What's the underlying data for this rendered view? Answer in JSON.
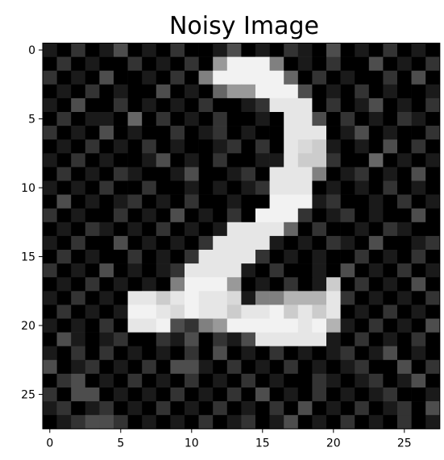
{
  "chart_data": {
    "type": "heatmap",
    "title": "Noisy Image",
    "colormap": "gray",
    "vlim": [
      0,
      1
    ],
    "xlim": [
      -0.5,
      27.5
    ],
    "ylim": [
      27.5,
      -0.5
    ],
    "xticks": [
      0,
      5,
      10,
      15,
      20,
      25
    ],
    "yticks": [
      0,
      5,
      10,
      15,
      20,
      25
    ],
    "values": [
      [
        0.1,
        0,
        0.2,
        0,
        0.1,
        0.3,
        0,
        0.1,
        0,
        0.2,
        0,
        0,
        0.1,
        0.3,
        0,
        0.1,
        0,
        0.2,
        0.1,
        0,
        0.3,
        0,
        0.1,
        0,
        0.2,
        0,
        0.1,
        0
      ],
      [
        0,
        0.2,
        0,
        0.1,
        0,
        0,
        0.2,
        0,
        0.1,
        0,
        0.2,
        0,
        0.6,
        0.95,
        0.95,
        0.95,
        0.5,
        0,
        0.1,
        0,
        0.2,
        0,
        0,
        0.3,
        0,
        0.1,
        0,
        0.2
      ],
      [
        0.2,
        0,
        0.1,
        0,
        0.3,
        0,
        0,
        0.1,
        0,
        0.2,
        0,
        0.5,
        0.95,
        0.95,
        0.95,
        0.95,
        0.95,
        0.4,
        0,
        0.2,
        0,
        0.1,
        0,
        0,
        0.2,
        0,
        0.3,
        0
      ],
      [
        0,
        0.1,
        0,
        0.2,
        0,
        0.1,
        0,
        0,
        0.3,
        0,
        0.1,
        0,
        0.4,
        0.6,
        0.6,
        0.95,
        0.95,
        0.95,
        0.3,
        0,
        0.1,
        0,
        0.2,
        0,
        0.1,
        0,
        0,
        0.1
      ],
      [
        0.1,
        0,
        0.3,
        0,
        0,
        0.2,
        0,
        0.1,
        0,
        0.1,
        0,
        0.2,
        0,
        0,
        0.1,
        0.2,
        0.9,
        0.9,
        0.9,
        0,
        0.2,
        0,
        0.1,
        0.3,
        0,
        0.1,
        0,
        0.2
      ],
      [
        0,
        0.2,
        0,
        0.1,
        0.1,
        0,
        0.4,
        0,
        0.2,
        0,
        0.1,
        0,
        0.2,
        0,
        0,
        0.1,
        0,
        0.9,
        0.9,
        0.3,
        0,
        0.2,
        0,
        0.1,
        0,
        0.2,
        0.1,
        0
      ],
      [
        0.2,
        0,
        0.1,
        0,
        0.3,
        0,
        0.1,
        0,
        0,
        0.2,
        0,
        0.1,
        0.2,
        0,
        0.1,
        0,
        0,
        0.9,
        0.9,
        0.9,
        0,
        0.1,
        0.3,
        0,
        0.1,
        0,
        0,
        0.2
      ],
      [
        0,
        0.1,
        0,
        0.2,
        0,
        0.1,
        0,
        0.2,
        0,
        0.1,
        0,
        0,
        0.1,
        0.2,
        0,
        0.2,
        0,
        0.9,
        0.85,
        0.8,
        0.1,
        0,
        0.1,
        0,
        0.3,
        0,
        0.2,
        0
      ],
      [
        0.1,
        0,
        0.2,
        0,
        0.1,
        0,
        0,
        0.1,
        0.3,
        0,
        0.1,
        0,
        0.2,
        0,
        0,
        0.1,
        0.1,
        0.9,
        0.8,
        0.8,
        0.2,
        0,
        0,
        0.4,
        0,
        0.1,
        0,
        0.1
      ],
      [
        0,
        0.2,
        0,
        0.1,
        0,
        0.2,
        0.1,
        0,
        0,
        0.1,
        0.3,
        0,
        0,
        0.1,
        0.2,
        0,
        0.9,
        0.9,
        0.9,
        0.5,
        0,
        0.1,
        0.2,
        0,
        0.1,
        0,
        0.3,
        0
      ],
      [
        0.1,
        0,
        0.1,
        0,
        0.2,
        0,
        0,
        0.2,
        0,
        0,
        0.1,
        0,
        0.1,
        0,
        0.1,
        0.2,
        0.9,
        0.9,
        0.9,
        0,
        0.1,
        0,
        0.1,
        0,
        0.2,
        0,
        0.1,
        0
      ],
      [
        0,
        0.3,
        0,
        0.1,
        0,
        0.1,
        0.2,
        0,
        0.1,
        0,
        0.2,
        0,
        0,
        0.1,
        0,
        0,
        0.95,
        0.95,
        0.95,
        0.1,
        0.2,
        0,
        0,
        0.1,
        0,
        0.2,
        0,
        0.1
      ],
      [
        0.2,
        0,
        0.1,
        0,
        0,
        0.2,
        0,
        0.1,
        0,
        0.3,
        0,
        0.1,
        0,
        0.2,
        0,
        0.95,
        0.95,
        0.95,
        0.2,
        0,
        0.1,
        0.2,
        0,
        0.1,
        0,
        0,
        0.3,
        0
      ],
      [
        0,
        0.1,
        0,
        0.2,
        0.1,
        0,
        0.1,
        0,
        0.2,
        0,
        0.1,
        0,
        0.1,
        0.9,
        0.9,
        0.9,
        0.9,
        0.4,
        0,
        0.2,
        0,
        0,
        0.1,
        0,
        0.2,
        0.1,
        0,
        0
      ],
      [
        0.1,
        0,
        0.2,
        0,
        0,
        0.3,
        0,
        0.1,
        0,
        0.1,
        0,
        0.2,
        0.9,
        0.9,
        0.9,
        0.9,
        0.1,
        0,
        0.1,
        0,
        0.2,
        0.1,
        0,
        0.3,
        0,
        0,
        0.1,
        0.2
      ],
      [
        0,
        0.2,
        0,
        0.1,
        0,
        0,
        0.2,
        0,
        0.1,
        0,
        0.2,
        0.9,
        0.9,
        0.9,
        0.9,
        0.2,
        0,
        0.1,
        0,
        0.1,
        0,
        0,
        0.2,
        0,
        0.1,
        0,
        0.2,
        0
      ],
      [
        0.2,
        0,
        0.1,
        0,
        0.3,
        0,
        0.1,
        0,
        0.1,
        0.2,
        0.9,
        0.9,
        0.9,
        0.9,
        0.1,
        0,
        0.2,
        0,
        0,
        0.1,
        0,
        0.3,
        0,
        0.1,
        0,
        0.2,
        0,
        0.1
      ],
      [
        0,
        0.1,
        0,
        0.2,
        0,
        0.1,
        0,
        0.1,
        0,
        0.5,
        0.95,
        0.95,
        0.95,
        0.6,
        0,
        0.1,
        0,
        0.2,
        0,
        0.1,
        0.8,
        0,
        0.2,
        0,
        0.1,
        0,
        0.3,
        0
      ],
      [
        0.1,
        0,
        0.2,
        0,
        0.1,
        0,
        0.9,
        0.9,
        0.8,
        0.9,
        0.95,
        0.9,
        0.9,
        0.85,
        0.1,
        0.5,
        0.5,
        0.7,
        0.7,
        0.7,
        0.9,
        0.2,
        0,
        0.1,
        0,
        0.1,
        0,
        0.2
      ],
      [
        0,
        0.2,
        0,
        0.1,
        0,
        0.1,
        0.95,
        0.95,
        0.9,
        0.85,
        0.95,
        0.9,
        0.9,
        0.8,
        0.9,
        0.9,
        0.95,
        0.8,
        0.9,
        0.8,
        0.9,
        0,
        0.1,
        0,
        0.2,
        0,
        0.1,
        0
      ],
      [
        0.1,
        0,
        0.1,
        0,
        0.2,
        0,
        0.9,
        0.9,
        0.95,
        0.3,
        0.2,
        0.5,
        0.6,
        0.95,
        0.95,
        0.95,
        0.95,
        0.95,
        0.9,
        0.95,
        0.7,
        0.1,
        0,
        0.2,
        0,
        0.1,
        0,
        0.3
      ],
      [
        0,
        0.3,
        0.1,
        0,
        0.1,
        0.2,
        0,
        0,
        0.2,
        0.1,
        0.3,
        0,
        0.2,
        0.1,
        0.3,
        0.9,
        0.9,
        0.9,
        0.9,
        0.9,
        0.1,
        0,
        0.2,
        0,
        0.1,
        0,
        0.2,
        0
      ],
      [
        0.1,
        0,
        0.2,
        0,
        0.2,
        0,
        0.1,
        0,
        0.1,
        0,
        0.2,
        0,
        0.3,
        0,
        0.1,
        0,
        0.2,
        0,
        0.1,
        0,
        0.1,
        0.2,
        0,
        0.1,
        0.3,
        0,
        0.1,
        0
      ],
      [
        0.3,
        0,
        0.1,
        0.2,
        0,
        0.1,
        0,
        0.2,
        0,
        0.3,
        0.3,
        0.1,
        0,
        0.2,
        0,
        0.1,
        0,
        0.2,
        0,
        0.1,
        0,
        0.1,
        0.2,
        0,
        0,
        0.3,
        0,
        0.2
      ],
      [
        0,
        0.2,
        0.3,
        0,
        0.1,
        0,
        0.2,
        0,
        0.1,
        0,
        0.2,
        0,
        0.1,
        0,
        0.2,
        0,
        0.1,
        0,
        0,
        0.2,
        0.1,
        0,
        0.1,
        0.2,
        0,
        0.1,
        0.3,
        0
      ],
      [
        0.2,
        0,
        0.3,
        0.3,
        0,
        0.1,
        0,
        0.1,
        0,
        0.2,
        0,
        0.1,
        0,
        0.2,
        0,
        0.3,
        0,
        0.1,
        0,
        0.2,
        0,
        0.1,
        0,
        0.1,
        0.2,
        0,
        0,
        0.1
      ],
      [
        0.1,
        0.2,
        0,
        0.1,
        0.2,
        0,
        0.1,
        0,
        0.2,
        0,
        0.1,
        0,
        0.2,
        0,
        0.1,
        0,
        0.2,
        0,
        0.3,
        0,
        0.1,
        0,
        0.2,
        0,
        0.1,
        0.2,
        0,
        0.3
      ],
      [
        0,
        0.1,
        0.2,
        0.3,
        0.3,
        0.2,
        0,
        0.1,
        0,
        0.1,
        0,
        0.2,
        0,
        0.1,
        0.2,
        0,
        0.1,
        0.3,
        0,
        0.1,
        0,
        0.2,
        0,
        0.1,
        0,
        0.2,
        0,
        0.1
      ]
    ]
  }
}
